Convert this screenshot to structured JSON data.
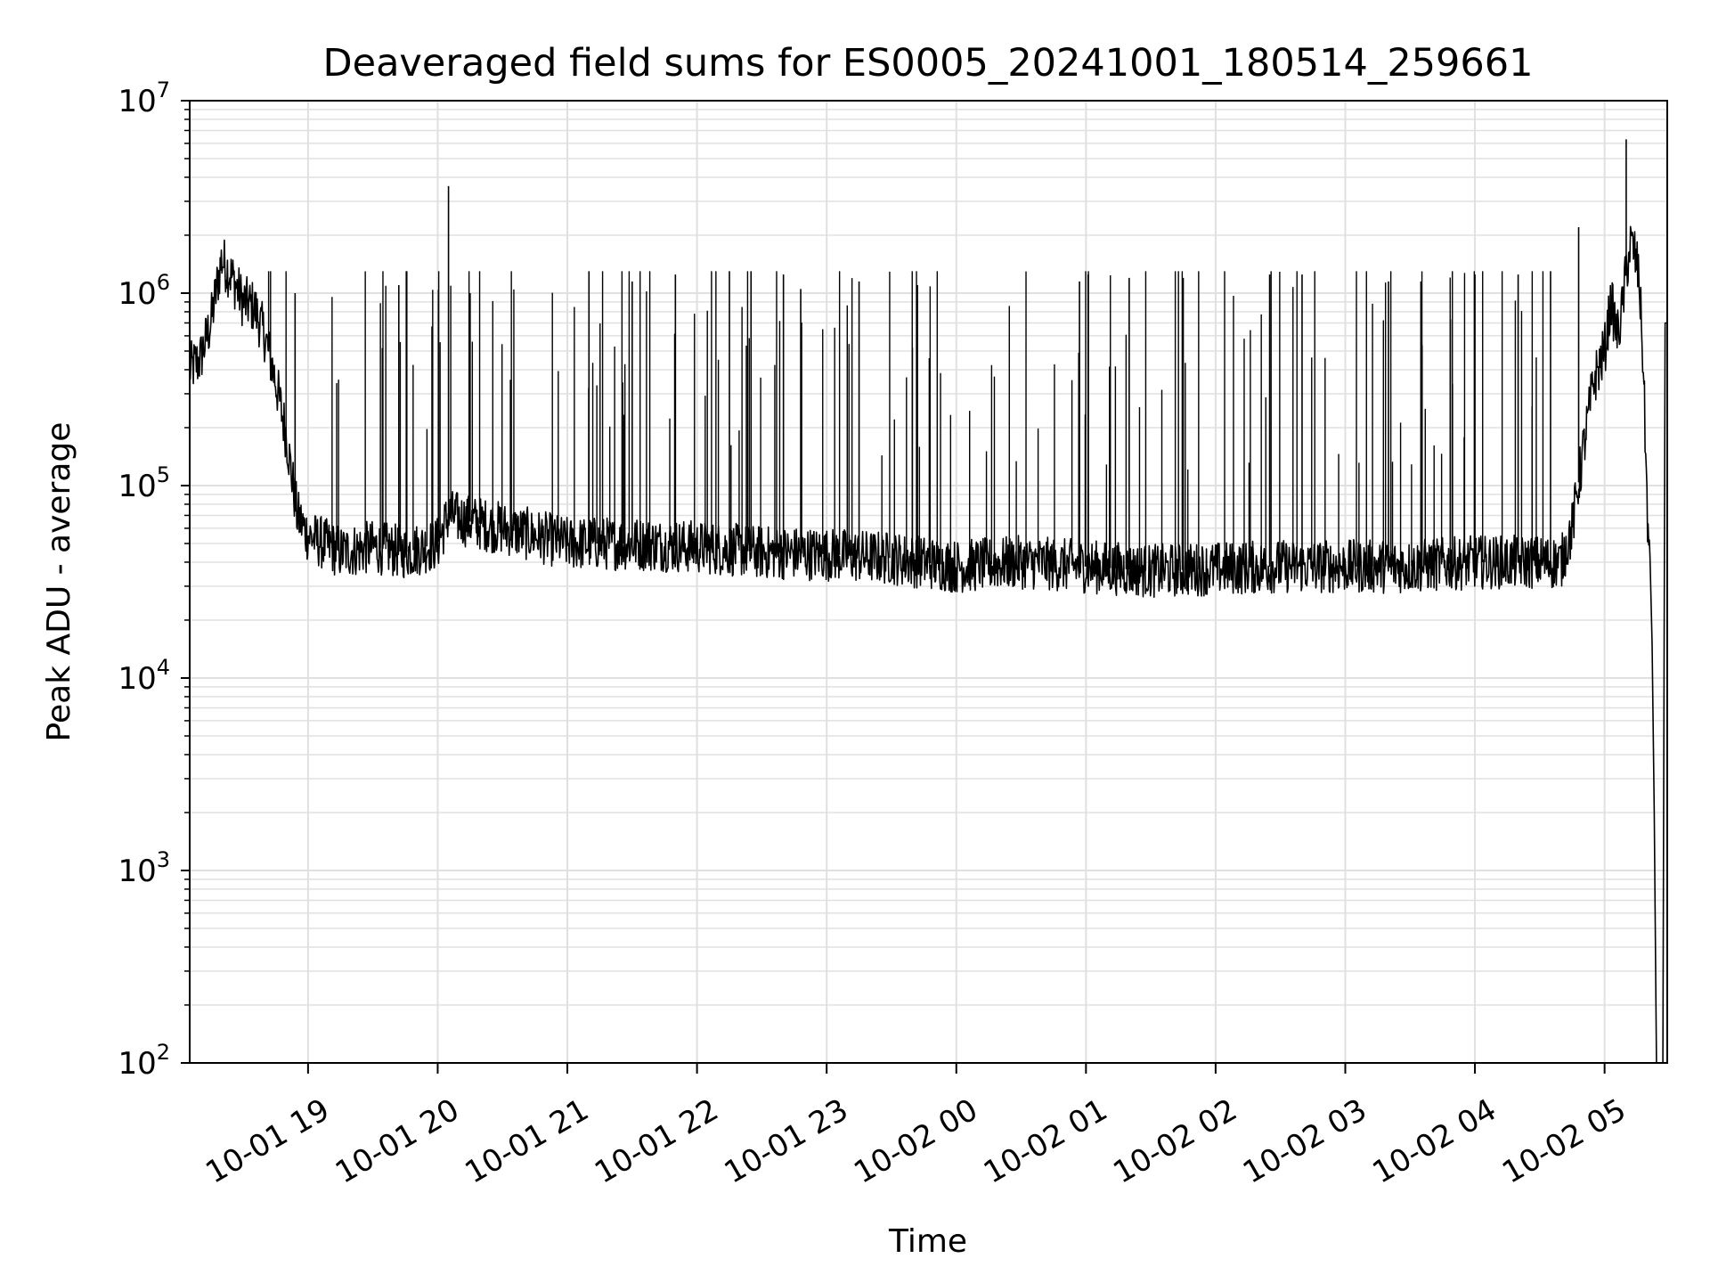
{
  "chart_data": {
    "type": "line",
    "title": "Deaveraged field sums for ES0005_20241001_180514_259661",
    "xlabel": "Time",
    "ylabel": "Peak ADU - average",
    "yscale": "log",
    "ylim": [
      100,
      10000000
    ],
    "xlim": [
      "2024-10-01 18:05:14",
      "2024-10-02 05:29:00"
    ],
    "grid": true,
    "line_color": "#000000",
    "grid_color": "#e0e0e0",
    "y_ticks": [
      {
        "base": "10",
        "exp": "2",
        "value": 100
      },
      {
        "base": "10",
        "exp": "3",
        "value": 1000
      },
      {
        "base": "10",
        "exp": "4",
        "value": 10000
      },
      {
        "base": "10",
        "exp": "5",
        "value": 100000
      },
      {
        "base": "10",
        "exp": "6",
        "value": 1000000
      },
      {
        "base": "10",
        "exp": "7",
        "value": 10000000
      }
    ],
    "x_ticks": [
      {
        "label": "10-01 19",
        "value": "2024-10-01 19:00"
      },
      {
        "label": "10-01 20",
        "value": "2024-10-01 20:00"
      },
      {
        "label": "10-01 21",
        "value": "2024-10-01 21:00"
      },
      {
        "label": "10-01 22",
        "value": "2024-10-01 22:00"
      },
      {
        "label": "10-01 23",
        "value": "2024-10-01 23:00"
      },
      {
        "label": "10-02 00",
        "value": "2024-10-02 00:00"
      },
      {
        "label": "10-02 01",
        "value": "2024-10-02 01:00"
      },
      {
        "label": "10-02 02",
        "value": "2024-10-02 02:00"
      },
      {
        "label": "10-02 03",
        "value": "2024-10-02 03:00"
      },
      {
        "label": "10-02 04",
        "value": "2024-10-02 04:00"
      },
      {
        "label": "10-02 05",
        "value": "2024-10-02 05:00"
      }
    ],
    "series": [
      {
        "x": [
          "2024-10-01 18:05",
          "2024-10-01 18:10",
          "2024-10-01 18:15",
          "2024-10-01 18:20",
          "2024-10-01 18:25",
          "2024-10-01 18:30",
          "2024-10-01 18:35",
          "2024-10-01 18:40",
          "2024-10-01 18:45",
          "2024-10-01 18:50",
          "2024-10-01 18:55",
          "2024-10-01 19:00",
          "2024-10-01 19:15",
          "2024-10-01 19:30",
          "2024-10-01 19:45",
          "2024-10-01 20:00",
          "2024-10-01 20:05",
          "2024-10-01 20:15",
          "2024-10-01 20:30",
          "2024-10-01 20:45",
          "2024-10-01 21:00",
          "2024-10-01 21:30",
          "2024-10-01 22:00",
          "2024-10-01 22:30",
          "2024-10-01 23:00",
          "2024-10-01 23:30",
          "2024-10-02 00:00",
          "2024-10-02 00:30",
          "2024-10-02 01:00",
          "2024-10-02 01:30",
          "2024-10-02 02:00",
          "2024-10-02 02:30",
          "2024-10-02 03:00",
          "2024-10-02 03:30",
          "2024-10-02 04:00",
          "2024-10-02 04:30",
          "2024-10-02 04:40",
          "2024-10-02 04:45",
          "2024-10-02 04:50",
          "2024-10-02 04:55",
          "2024-10-02 05:00",
          "2024-10-02 05:03",
          "2024-10-02 05:06",
          "2024-10-02 05:08",
          "2024-10-02 05:10",
          "2024-10-02 05:12",
          "2024-10-02 05:14",
          "2024-10-02 05:16",
          "2024-10-02 05:18",
          "2024-10-02 05:19",
          "2024-10-02 05:20",
          "2024-10-02 05:21",
          "2024-10-02 05:22",
          "2024-10-02 05:23",
          "2024-10-02 05:24",
          "2024-10-02 05:26",
          "2024-10-02 05:27",
          "2024-10-02 05:28",
          "2024-10-02 05:29"
        ],
        "y": [
          400000,
          450000,
          700000,
          1500000,
          1200000,
          900000,
          850000,
          600000,
          350000,
          180000,
          70000,
          55000,
          45000,
          48000,
          45000,
          50000,
          70000,
          65000,
          60000,
          55000,
          50000,
          50000,
          48000,
          45000,
          44000,
          42000,
          38000,
          40000,
          38000,
          36000,
          37000,
          38000,
          38000,
          38000,
          40000,
          40000,
          40000,
          60000,
          150000,
          350000,
          500000,
          900000,
          600000,
          800000,
          1300000,
          1800000,
          1600000,
          1200000,
          400000,
          150000,
          60000,
          35000,
          15000,
          2000,
          100,
          100,
          100,
          700000,
          700000
        ]
      }
    ],
    "spikes": [
      {
        "x": "2024-10-01 20:05",
        "y": 3600000
      },
      {
        "x": "2024-10-02 05:10",
        "y": 6300000
      },
      {
        "x": "2024-10-02 04:48",
        "y": 2200000
      },
      {
        "x": "2024-10-01 18:54",
        "y": 1000000
      },
      {
        "x": "2024-10-01 19:42",
        "y": 1100000
      },
      {
        "x": "2024-10-01 20:15",
        "y": 1000000
      },
      {
        "x": "2024-10-01 21:10",
        "y": 1300000
      },
      {
        "x": "2024-10-01 21:30",
        "y": 1150000
      },
      {
        "x": "2024-10-01 21:50",
        "y": 1250000
      },
      {
        "x": "2024-10-01 22:15",
        "y": 1300000
      },
      {
        "x": "2024-10-01 22:25",
        "y": 1300000
      },
      {
        "x": "2024-10-01 22:40",
        "y": 1250000
      },
      {
        "x": "2024-10-01 22:48",
        "y": 1050000
      },
      {
        "x": "2024-10-01 23:15",
        "y": 1150000
      },
      {
        "x": "2024-10-01 23:42",
        "y": 1100000
      },
      {
        "x": "2024-10-02 00:57",
        "y": 1150000
      },
      {
        "x": "2024-10-02 01:01",
        "y": 1250000
      },
      {
        "x": "2024-10-02 01:20",
        "y": 1200000
      },
      {
        "x": "2024-10-02 01:45",
        "y": 1200000
      },
      {
        "x": "2024-10-02 02:25",
        "y": 1250000
      },
      {
        "x": "2024-10-02 02:40",
        "y": 1250000
      },
      {
        "x": "2024-10-02 03:20",
        "y": 1150000
      },
      {
        "x": "2024-10-02 03:35",
        "y": 1150000
      },
      {
        "x": "2024-10-02 04:00",
        "y": 1250000
      },
      {
        "x": "2024-10-02 04:20",
        "y": 1250000
      },
      {
        "x": "2024-10-02 04:35",
        "y": 1300000
      }
    ]
  }
}
